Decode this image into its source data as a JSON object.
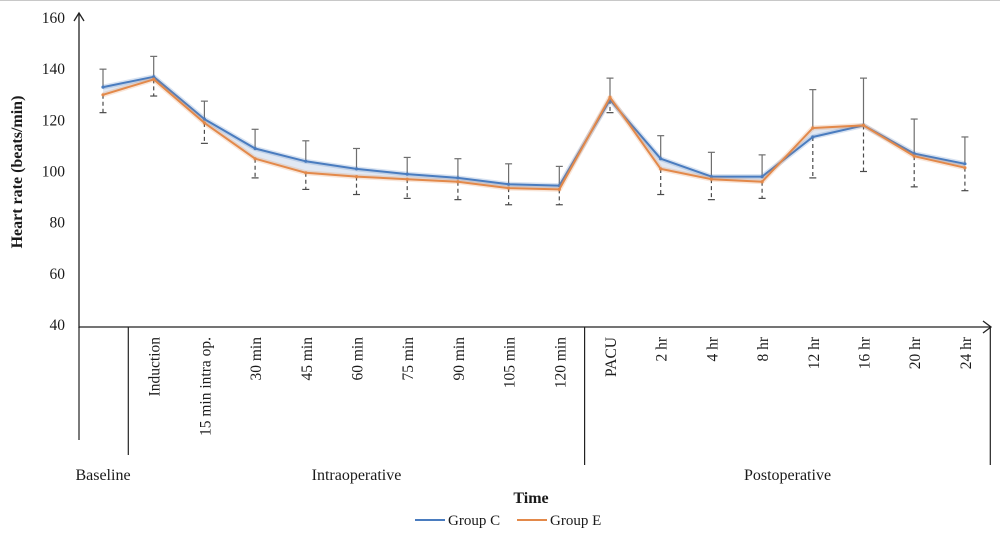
{
  "chart_data": {
    "type": "line",
    "xlabel": "Time",
    "ylabel": "Heart rate (beats/min)",
    "ylim": [
      40,
      160
    ],
    "yticks": [
      40,
      60,
      80,
      100,
      120,
      140,
      160
    ],
    "grid": false,
    "legend": "bottom-center",
    "categories": [
      "Baseline",
      "Induction",
      "15 min intra op.",
      "30 min",
      "45 min",
      "60 min",
      "75 min",
      "90 min",
      "105 min",
      "120 min",
      "PACU",
      "2 hr",
      "4 hr",
      "8 hr",
      "12 hr",
      "16 hr",
      "20 hr",
      "24 hr"
    ],
    "phases": [
      {
        "label": "Baseline",
        "start": 0,
        "end": 0
      },
      {
        "label": "Intraoperative",
        "start": 1,
        "end": 9
      },
      {
        "label": "Postoperative",
        "start": 10,
        "end": 17
      }
    ],
    "series": [
      {
        "name": "Group C",
        "color": "#4a7cbf",
        "values": [
          133,
          137,
          120.5,
          109,
          104,
          101,
          99,
          97.5,
          95,
          94.5,
          128,
          105,
          98,
          98,
          113.5,
          118,
          107,
          103
        ]
      },
      {
        "name": "Group E",
        "color": "#e3894a",
        "values": [
          130,
          136,
          119,
          105,
          99.5,
          98,
          97,
          96,
          93.5,
          93,
          129,
          101,
          97,
          96,
          117,
          118,
          106,
          101.5
        ]
      }
    ],
    "error_bars": {
      "upper": [
        140,
        145,
        127.5,
        116.5,
        112,
        109,
        105.5,
        105,
        103,
        102,
        136.5,
        114,
        107.5,
        106.5,
        132,
        136.5,
        120.5,
        113.5
      ],
      "lower": [
        123,
        129.5,
        111,
        97.5,
        93,
        91,
        89.5,
        89,
        87,
        87,
        123,
        91,
        89,
        89.5,
        97.5,
        100,
        94,
        92.5
      ]
    }
  }
}
